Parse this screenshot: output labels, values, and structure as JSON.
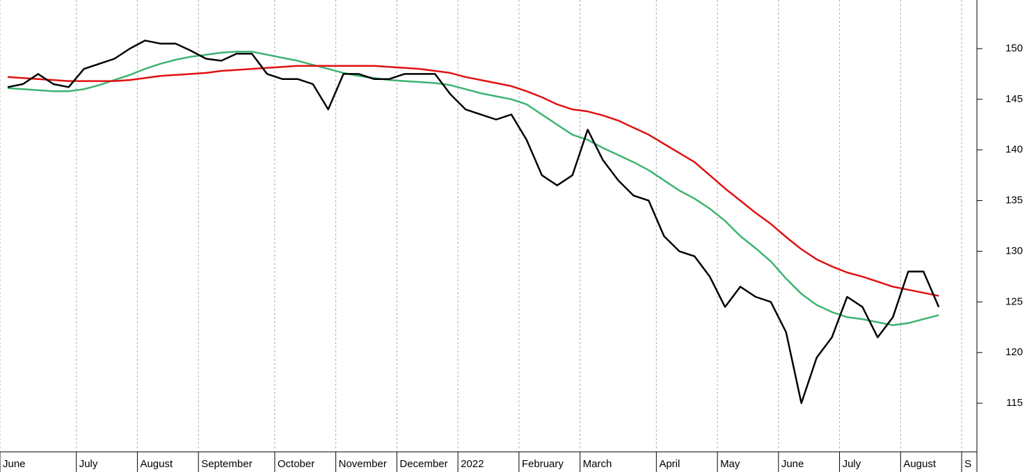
{
  "chart_data": {
    "type": "line",
    "categories": [
      "June",
      null,
      null,
      null,
      null,
      "July",
      null,
      null,
      null,
      "August",
      null,
      null,
      null,
      "September",
      null,
      null,
      null,
      null,
      "October",
      null,
      null,
      null,
      "November",
      null,
      null,
      null,
      "December",
      null,
      null,
      null,
      "2022",
      null,
      null,
      null,
      "February",
      null,
      null,
      null,
      "March",
      null,
      null,
      null,
      null,
      "April",
      null,
      null,
      null,
      "May",
      null,
      null,
      null,
      "June",
      null,
      null,
      null,
      "July",
      null,
      null,
      null,
      "August",
      null,
      null,
      null,
      "S"
    ],
    "series": [
      {
        "color": "#000000",
        "values": [
          146.2,
          146.5,
          147.5,
          146.5,
          146.2,
          148,
          148.5,
          149,
          150,
          150.8,
          150.5,
          150.5,
          149.8,
          149,
          148.8,
          149.5,
          149.5,
          147.5,
          147,
          147,
          146.5,
          144,
          147.5,
          147.5,
          147,
          147,
          147.5,
          147.5,
          147.5,
          145.5,
          144,
          143.5,
          143,
          143.5,
          141,
          137.5,
          136.5,
          137.5,
          142,
          139,
          137,
          135.5,
          135,
          131.5,
          130,
          129.5,
          127.5,
          124.5,
          126.5,
          125.5,
          125,
          122,
          115,
          119.5,
          121.5,
          125.5,
          124.5,
          121.5,
          123.5,
          128,
          128,
          124.5,
          null,
          null
        ]
      },
      {
        "color": "#3cb371",
        "values": [
          146.1,
          146,
          145.9,
          145.8,
          145.8,
          146,
          146.4,
          146.9,
          147.4,
          148,
          148.5,
          148.9,
          149.2,
          149.4,
          149.6,
          149.7,
          149.7,
          149.4,
          149.1,
          148.8,
          148.4,
          148,
          147.6,
          147.3,
          147.1,
          146.9,
          146.8,
          146.7,
          146.6,
          146.4,
          146,
          145.6,
          145.3,
          145,
          144.5,
          143.5,
          142.5,
          141.5,
          141,
          140.2,
          139.5,
          138.8,
          138,
          137,
          136,
          135.2,
          134.2,
          133,
          131.5,
          130.3,
          129,
          127.3,
          125.8,
          124.7,
          124,
          123.5,
          123.3,
          123,
          122.7,
          122.9,
          123.3,
          123.7,
          null,
          null
        ]
      },
      {
        "color": "#e01010",
        "values": [
          147.2,
          147.1,
          147,
          146.9,
          146.8,
          146.8,
          146.8,
          146.8,
          146.9,
          147.1,
          147.3,
          147.4,
          147.5,
          147.6,
          147.8,
          147.9,
          148,
          148.1,
          148.2,
          148.3,
          148.3,
          148.3,
          148.3,
          148.3,
          148.3,
          148.2,
          148.1,
          148,
          147.8,
          147.6,
          147.2,
          146.9,
          146.6,
          146.3,
          145.8,
          145.2,
          144.5,
          144,
          143.8,
          143.4,
          142.9,
          142.2,
          141.5,
          140.6,
          139.7,
          138.8,
          137.5,
          136.2,
          135,
          133.8,
          132.7,
          131.4,
          130.2,
          129.2,
          128.5,
          127.9,
          127.5,
          127,
          126.5,
          126.2,
          125.9,
          125.6,
          null,
          null
        ]
      }
    ],
    "ylim": [
      110.2,
      154.8
    ],
    "yticks": [
      115,
      120,
      125,
      130,
      135,
      140,
      145,
      150
    ],
    "grid": true
  }
}
